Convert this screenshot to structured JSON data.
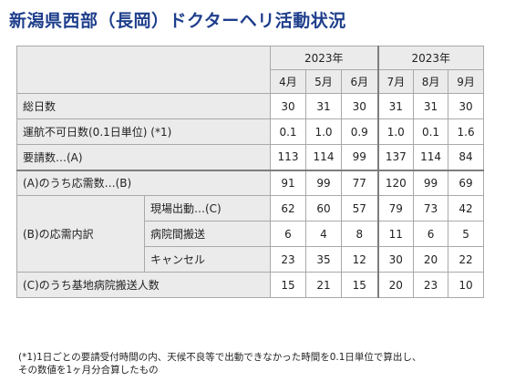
{
  "title": "新潟県西部（長岡）ドクターヘリ活動状況",
  "table": {
    "years": [
      "2023年",
      "2023年"
    ],
    "months": [
      "4月",
      "5月",
      "6月",
      "7月",
      "8月",
      "9月"
    ],
    "rows": {
      "total_days": {
        "label": "総日数",
        "values": [
          "30",
          "31",
          "30",
          "31",
          "31",
          "30"
        ]
      },
      "non_operable": {
        "label": "運航不可日数(0.1日単位) (*1)",
        "values": [
          "0.1",
          "1.0",
          "0.9",
          "1.0",
          "0.1",
          "1.6"
        ]
      },
      "requests": {
        "label": "要請数…(A)",
        "values": [
          "113",
          "114",
          "99",
          "137",
          "114",
          "84"
        ]
      },
      "responses": {
        "label": "(A)のうち応需数…(B)",
        "values": [
          "91",
          "99",
          "77",
          "120",
          "99",
          "69"
        ]
      },
      "breakdown": {
        "label": "(B)の応需内訳",
        "items": [
          {
            "label": "現場出動…(C)",
            "values": [
              "62",
              "60",
              "57",
              "79",
              "73",
              "42"
            ]
          },
          {
            "label": "病院間搬送",
            "values": [
              "6",
              "4",
              "8",
              "11",
              "6",
              "5"
            ]
          },
          {
            "label": "キャンセル",
            "values": [
              "23",
              "35",
              "12",
              "30",
              "20",
              "22"
            ]
          }
        ]
      },
      "base_hospital": {
        "label": "(C)のうち基地病院搬送人数",
        "values": [
          "15",
          "21",
          "15",
          "20",
          "23",
          "10"
        ]
      }
    }
  },
  "footnote": {
    "line1": "(*1)1日ごとの要請受付時間の内、天候不良等で出動できなかった時間を0.1日単位で算出し、",
    "line2": "その数値を1ヶ月分合算したもの"
  }
}
